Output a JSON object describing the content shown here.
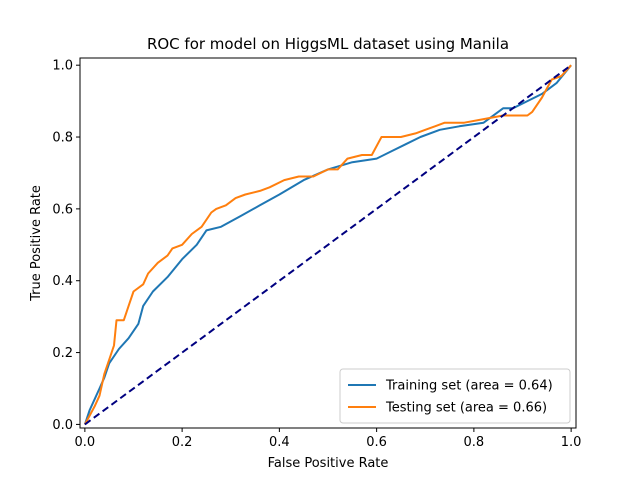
{
  "chart_data": {
    "type": "line",
    "title": "ROC for model on HiggsML dataset using Manila",
    "xlabel": "False Positive Rate",
    "ylabel": "True Positive Rate",
    "xlim": [
      -0.01,
      1.01
    ],
    "ylim": [
      -0.01,
      1.02
    ],
    "xticks": [
      0.0,
      0.2,
      0.4,
      0.6,
      0.8,
      1.0
    ],
    "yticks": [
      0.0,
      0.2,
      0.4,
      0.6,
      0.8,
      1.0
    ],
    "xtick_labels": [
      "0.0",
      "0.2",
      "0.4",
      "0.6",
      "0.8",
      "1.0"
    ],
    "ytick_labels": [
      "0.0",
      "0.2",
      "0.4",
      "0.6",
      "0.8",
      "1.0"
    ],
    "grid": false,
    "legend_position": "lower-right",
    "series": [
      {
        "name": "Training set (area = 0.64)",
        "color": "#1f77b4",
        "style": "solid",
        "x": [
          0.0,
          0.01,
          0.02,
          0.03,
          0.04,
          0.05,
          0.07,
          0.09,
          0.11,
          0.12,
          0.14,
          0.17,
          0.2,
          0.23,
          0.25,
          0.28,
          0.32,
          0.36,
          0.4,
          0.45,
          0.5,
          0.55,
          0.6,
          0.63,
          0.66,
          0.69,
          0.73,
          0.77,
          0.82,
          0.86,
          0.88,
          0.91,
          0.94,
          0.97,
          1.0
        ],
        "y": [
          0.0,
          0.04,
          0.07,
          0.1,
          0.13,
          0.17,
          0.21,
          0.24,
          0.28,
          0.33,
          0.37,
          0.41,
          0.46,
          0.5,
          0.54,
          0.55,
          0.58,
          0.61,
          0.64,
          0.68,
          0.71,
          0.73,
          0.74,
          0.76,
          0.78,
          0.8,
          0.82,
          0.83,
          0.84,
          0.88,
          0.88,
          0.9,
          0.92,
          0.95,
          1.0
        ]
      },
      {
        "name": "Testing set (area = 0.66)",
        "color": "#ff7f0e",
        "style": "solid",
        "x": [
          0.0,
          0.02,
          0.03,
          0.04,
          0.05,
          0.06,
          0.065,
          0.08,
          0.09,
          0.1,
          0.12,
          0.13,
          0.15,
          0.17,
          0.18,
          0.2,
          0.22,
          0.24,
          0.26,
          0.27,
          0.29,
          0.31,
          0.33,
          0.36,
          0.38,
          0.41,
          0.44,
          0.47,
          0.5,
          0.52,
          0.54,
          0.57,
          0.59,
          0.61,
          0.65,
          0.68,
          0.7,
          0.72,
          0.74,
          0.78,
          0.82,
          0.86,
          0.89,
          0.91,
          0.92,
          0.94,
          0.96,
          0.98,
          1.0
        ],
        "y": [
          0.0,
          0.05,
          0.08,
          0.14,
          0.18,
          0.22,
          0.29,
          0.29,
          0.33,
          0.37,
          0.39,
          0.42,
          0.45,
          0.47,
          0.49,
          0.5,
          0.53,
          0.55,
          0.59,
          0.6,
          0.61,
          0.63,
          0.64,
          0.65,
          0.66,
          0.68,
          0.69,
          0.69,
          0.71,
          0.71,
          0.74,
          0.75,
          0.75,
          0.8,
          0.8,
          0.81,
          0.82,
          0.83,
          0.84,
          0.84,
          0.85,
          0.86,
          0.86,
          0.86,
          0.87,
          0.91,
          0.96,
          0.97,
          1.0
        ]
      },
      {
        "color": "#000080",
        "style": "dashed",
        "x": [
          0.0,
          1.0
        ],
        "y": [
          0.0,
          1.0
        ]
      }
    ]
  }
}
